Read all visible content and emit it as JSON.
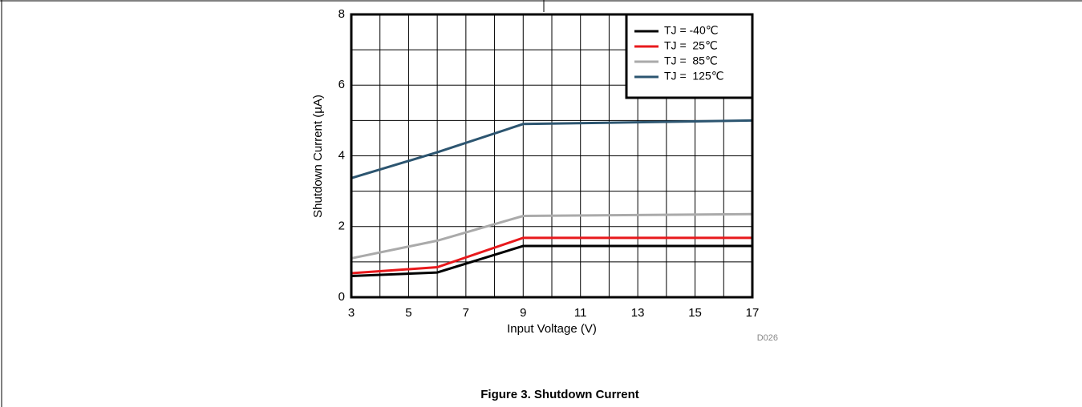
{
  "chart_data": {
    "type": "line",
    "figure_id": "D026",
    "caption": "Figure 3. Shutdown Current",
    "x_label": "Input Voltage (V)",
    "y_label": "Shutdown Current (µA)",
    "xlim": [
      3,
      17
    ],
    "ylim": [
      0,
      8
    ],
    "xticks": [
      3,
      5,
      7,
      9,
      11,
      13,
      15,
      17
    ],
    "yticks": [
      0,
      2,
      4,
      6,
      8
    ],
    "x_minor_ticks": [
      4,
      6,
      8,
      10,
      12,
      14,
      16
    ],
    "y_minor_ticks": [
      1,
      3,
      5,
      7
    ],
    "grid": true,
    "legend": "upper right",
    "x": [
      3,
      6,
      9,
      17
    ],
    "series": [
      {
        "name": "TJ = -40℃",
        "color": "#000000",
        "values": [
          0.6,
          0.7,
          1.45,
          1.45
        ]
      },
      {
        "name": "TJ =  25℃",
        "color": "#e8191c",
        "values": [
          0.68,
          0.85,
          1.68,
          1.68
        ]
      },
      {
        "name": "TJ =  85℃",
        "color": "#aaaaaa",
        "values": [
          1.1,
          1.6,
          2.3,
          2.35
        ]
      },
      {
        "name": "TJ =  125℃",
        "color": "#2c5570",
        "values": [
          3.37,
          4.1,
          4.9,
          5.0
        ]
      }
    ]
  }
}
